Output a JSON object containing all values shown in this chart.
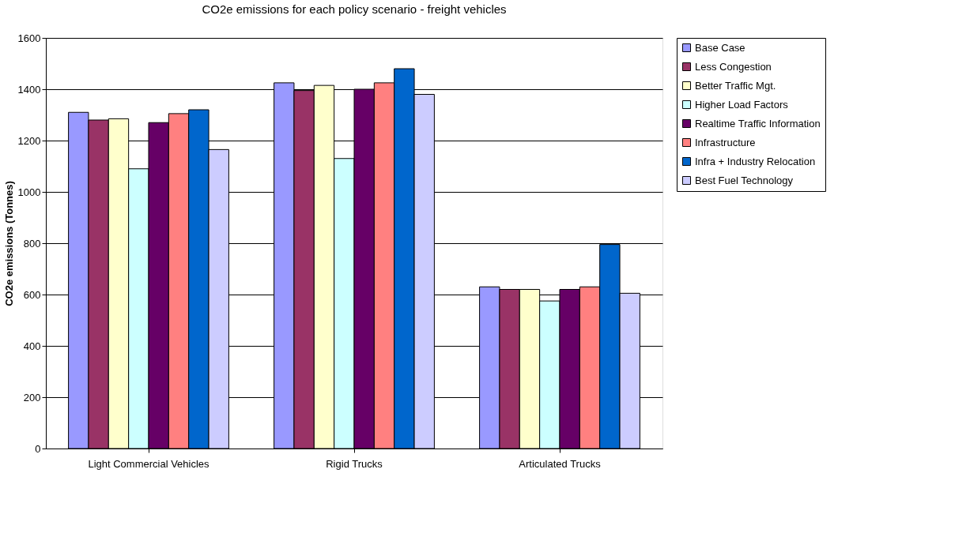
{
  "chart_data": {
    "type": "bar",
    "title": "CO2e emissions for each policy scenario - freight vehicles",
    "ylabel": "CO2e emissions (Tonnes)",
    "categories": [
      "Light Commercial Vehicles",
      "Rigid Trucks",
      "Articulated Trucks"
    ],
    "series": [
      {
        "name": "Base Case",
        "color": "#9999ff",
        "values": [
          1310,
          1425,
          630
        ]
      },
      {
        "name": "Less Congestion",
        "color": "#993366",
        "values": [
          1280,
          1395,
          620
        ]
      },
      {
        "name": "Better Traffic Mgt.",
        "color": "#ffffcc",
        "values": [
          1285,
          1415,
          620
        ]
      },
      {
        "name": "Higher Load Factors",
        "color": "#ccffff",
        "values": [
          1090,
          1130,
          575
        ]
      },
      {
        "name": "Realtime Traffic Information",
        "color": "#660066",
        "values": [
          1270,
          1400,
          620
        ]
      },
      {
        "name": "Infrastructure",
        "color": "#ff8080",
        "values": [
          1305,
          1425,
          630
        ]
      },
      {
        "name": "Infra + Industry Relocation",
        "color": "#0066cc",
        "values": [
          1320,
          1480,
          795
        ]
      },
      {
        "name": "Best Fuel Technology",
        "color": "#ccccff",
        "values": [
          1165,
          1380,
          605
        ]
      }
    ],
    "ylim": [
      0,
      1600
    ],
    "yticks": [
      0,
      200,
      400,
      600,
      800,
      1000,
      1200,
      1400,
      1600
    ],
    "grid": "y",
    "legend": "right"
  }
}
